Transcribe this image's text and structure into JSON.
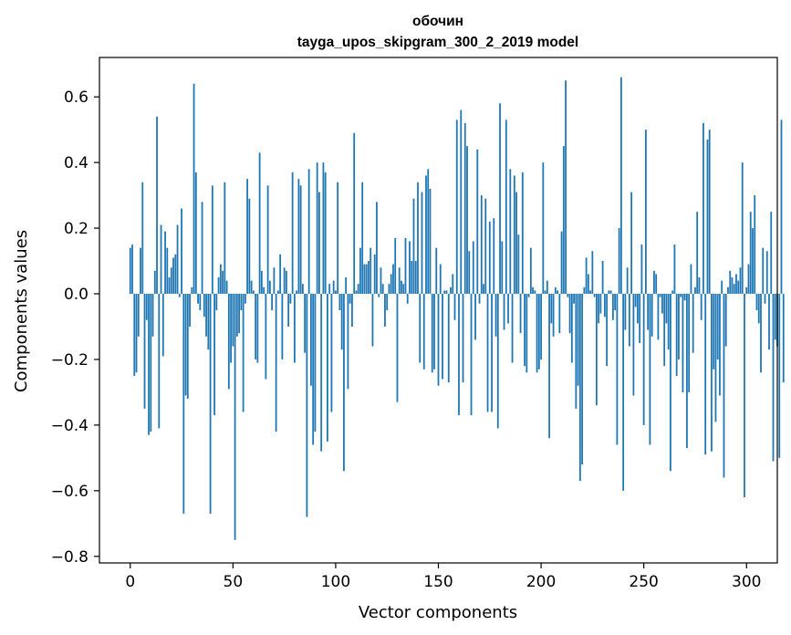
{
  "chart_data": {
    "type": "bar",
    "title_line1": "обочин",
    "title_line2": "tayga_upos_skipgram_300_2_2019 model",
    "xlabel": "Vector components",
    "ylabel": "Components values",
    "xlim": [
      -15,
      315
    ],
    "ylim": [
      -0.82,
      0.72
    ],
    "xticks": [
      0,
      50,
      100,
      150,
      200,
      250,
      300
    ],
    "xtick_labels": [
      "0",
      "50",
      "100",
      "150",
      "200",
      "250",
      "300"
    ],
    "yticks": [
      -0.8,
      -0.6,
      -0.4,
      -0.2,
      0.0,
      0.2,
      0.4,
      0.6
    ],
    "ytick_labels": [
      "−0.8",
      "−0.6",
      "−0.4",
      "−0.2",
      "0.0",
      "0.2",
      "0.4",
      "0.6"
    ],
    "bar_color": "#1f77b4",
    "values": [
      0.14,
      0.15,
      -0.25,
      -0.24,
      -0.13,
      0.14,
      0.34,
      -0.35,
      -0.08,
      -0.43,
      -0.42,
      -0.13,
      0.07,
      0.54,
      -0.41,
      0.21,
      -0.19,
      0.19,
      0.14,
      0.05,
      0.08,
      0.11,
      0.12,
      0.21,
      -0.01,
      0.26,
      -0.67,
      -0.31,
      -0.32,
      -0.1,
      0.02,
      0.64,
      0.37,
      -0.03,
      -0.05,
      0.28,
      -0.07,
      -0.13,
      -0.17,
      -0.67,
      0.33,
      -0.37,
      -0.05,
      0.05,
      0.09,
      0.07,
      0.34,
      0.04,
      -0.29,
      -0.21,
      -0.16,
      -0.75,
      -0.13,
      -0.12,
      -0.05,
      -0.36,
      -0.03,
      0.35,
      0.29,
      0.04,
      0.01,
      -0.2,
      -0.21,
      0.43,
      0.07,
      0.02,
      -0.26,
      0.33,
      0.04,
      -0.05,
      0.08,
      -0.42,
      0.01,
      0.12,
      -0.2,
      0.08,
      0.07,
      -0.1,
      -0.03,
      0.37,
      -0.21,
      0.01,
      0.35,
      0.33,
      0.03,
      -0.18,
      -0.68,
      0.38,
      -0.28,
      -0.46,
      -0.42,
      0.4,
      0.31,
      -0.48,
      0.4,
      0.37,
      -0.45,
      0.03,
      -0.36,
      0.04,
      0.01,
      0.34,
      -0.05,
      -0.17,
      -0.54,
      0.05,
      -0.29,
      -0.03,
      -0.1,
      0.49,
      0.01,
      0.03,
      0.14,
      0.34,
      0.09,
      0.09,
      0.1,
      0.14,
      -0.16,
      0.12,
      0.28,
      -0.01,
      0.08,
      0.03,
      -0.1,
      -0.05,
      0.03,
      0.06,
      0.09,
      0.17,
      -0.33,
      0.08,
      0.04,
      0.03,
      0.17,
      -0.03,
      0.16,
      0.1,
      0.29,
      0.1,
      0.34,
      -0.21,
      0.31,
      -0.23,
      0.36,
      0.38,
      0.32,
      -0.24,
      -0.23,
      0.14,
      -0.28,
      0.09,
      -0.26,
      0.01,
      0.01,
      -0.27,
      0.02,
      0.06,
      -0.08,
      0.53,
      -0.37,
      0.56,
      -0.27,
      0.52,
      0.45,
      0.13,
      -0.37,
      0.16,
      -0.14,
      0.44,
      -0.03,
      0.3,
      0.03,
      0.29,
      -0.36,
      0.22,
      -0.36,
      0.23,
      -0.13,
      -0.41,
      0.58,
      0.16,
      -0.11,
      0.53,
      -0.09,
      0.38,
      -0.21,
      0.36,
      0.31,
      0.18,
      -0.12,
      0.37,
      -0.22,
      -0.24,
      -0.01,
      0.14,
      0.02,
      0.01,
      -0.24,
      -0.23,
      -0.2,
      0.4,
      0.01,
      0.04,
      -0.44,
      -0.09,
      -0.13,
      0.02,
      0.01,
      -0.12,
      0.19,
      0.45,
      0.65,
      -0.01,
      -0.12,
      -0.21,
      -0.03,
      -0.35,
      -0.28,
      -0.57,
      -0.52,
      0.02,
      0.11,
      0.06,
      0.01,
      0.13,
      -0.01,
      -0.34,
      -0.09,
      -0.06,
      0.1,
      -0.07,
      -0.22,
      0.01,
      0.01,
      -0.08,
      -0.05,
      -0.46,
      0.2,
      0.66,
      -0.6,
      -0.11,
      0.08,
      -0.16,
      0.31,
      -0.31,
      -0.04,
      -0.09,
      -0.15,
      0.15,
      -0.4,
      0.5,
      -0.11,
      -0.46,
      -0.13,
      0.07,
      0.06,
      -0.14,
      -0.01,
      -0.06,
      -0.22,
      -0.09,
      -0.17,
      -0.54,
      0.01,
      0.15,
      -0.25,
      -0.2,
      -0.01,
      -0.3,
      -0.02,
      -0.47,
      -0.3,
      0.09,
      -0.18,
      0.02,
      0.25,
      0.05,
      -0.08,
      0.52,
      -0.49,
      0.47,
      0.5,
      -0.48,
      -0.23,
      -0.39,
      -0.2,
      -0.31,
      0.04,
      -0.56,
      -0.16,
      0.02,
      0.07,
      0.05,
      0.03,
      0.06,
      0.04,
      0.08,
      0.4,
      -0.62,
      0.02,
      0.09,
      0.25,
      0.2,
      0.3,
      -0.05,
      -0.09,
      -0.24,
      0.14,
      -0.03,
      0.13,
      -0.17,
      0.25,
      -0.51,
      -0.14,
      -0.16,
      -0.5,
      0.53,
      -0.27
    ]
  }
}
